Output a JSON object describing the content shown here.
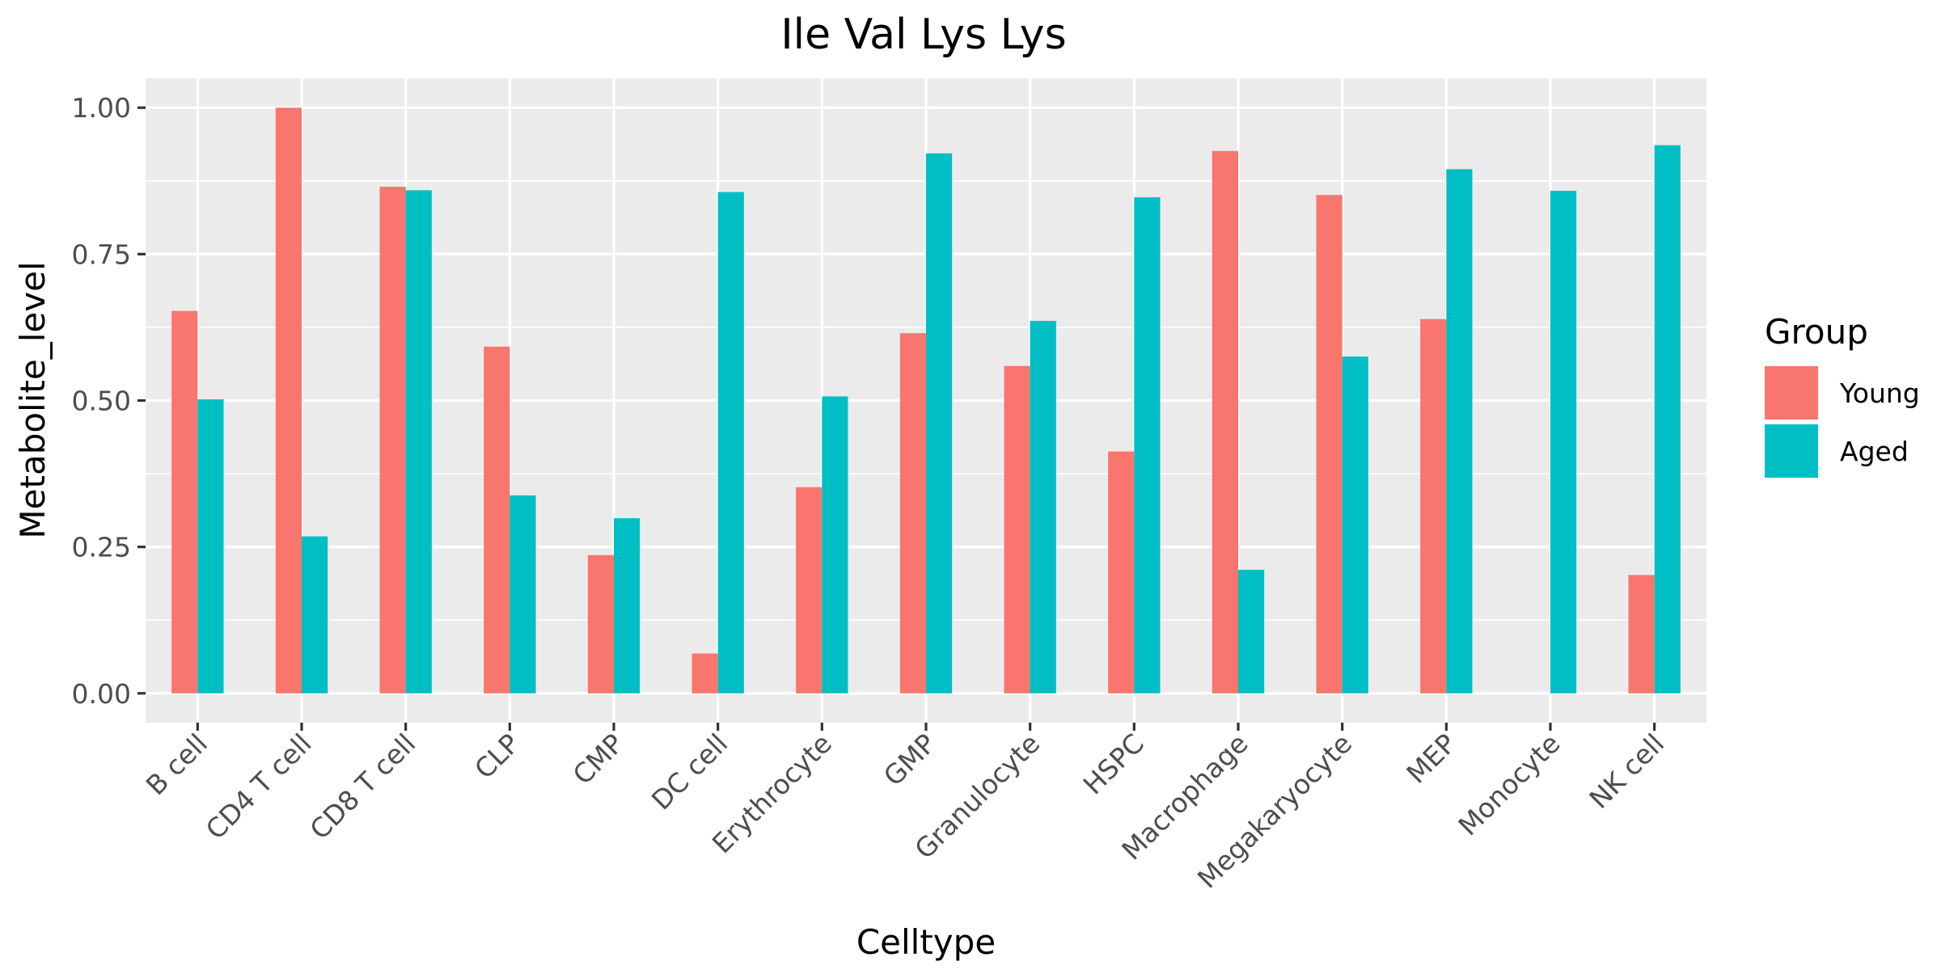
{
  "chart_data": {
    "type": "bar",
    "title": "Ile Val Lys Lys",
    "xlabel": "Celltype",
    "ylabel": "Metabolite_level",
    "categories": [
      "B cell",
      "CD4 T cell",
      "CD8 T cell",
      "CLP",
      "CMP",
      "DC cell",
      "Erythrocyte",
      "GMP",
      "Granulocyte",
      "HSPC",
      "Macrophage",
      "Megakaryocyte",
      "MEP",
      "Monocyte",
      "NK cell"
    ],
    "series": [
      {
        "name": "Young",
        "color": "#F8766D",
        "values": [
          0.653,
          1.0,
          0.865,
          0.592,
          0.236,
          0.068,
          0.352,
          0.615,
          0.559,
          0.413,
          0.926,
          0.851,
          0.639,
          0.0,
          0.202
        ]
      },
      {
        "name": "Aged",
        "color": "#00BFC4",
        "values": [
          0.502,
          0.268,
          0.859,
          0.338,
          0.299,
          0.856,
          0.507,
          0.922,
          0.636,
          0.847,
          0.211,
          0.575,
          0.895,
          0.858,
          0.936
        ]
      }
    ],
    "ylim": [
      -0.05,
      1.05
    ],
    "yticks": [
      0.0,
      0.25,
      0.5,
      0.75,
      1.0
    ],
    "ytick_labels": [
      "0.00",
      "0.25",
      "0.50",
      "0.75",
      "1.00"
    ],
    "grid": true,
    "legend": {
      "title": "Group",
      "position": "right"
    },
    "panel_color": "#EBEBEB",
    "grid_color": "#FFFFFF"
  }
}
